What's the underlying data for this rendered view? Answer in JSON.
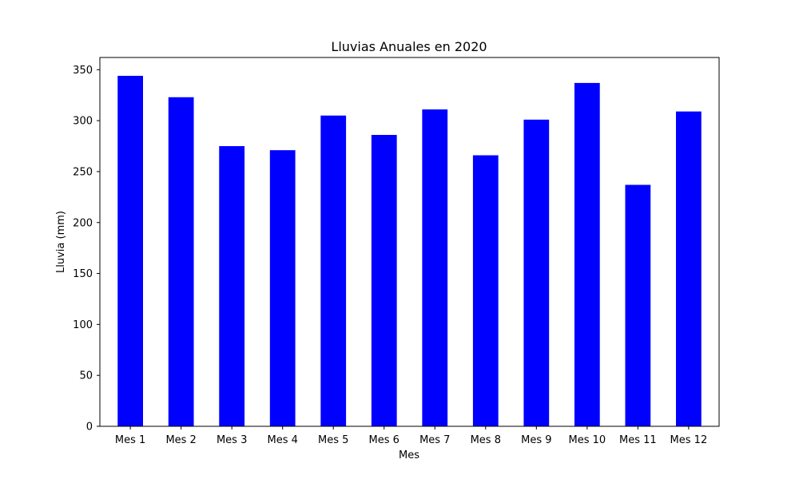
{
  "chart_data": {
    "type": "bar",
    "title": "Lluvias Anuales en 2020",
    "xlabel": "Mes",
    "ylabel": "Lluvia (mm)",
    "categories": [
      "Mes 1",
      "Mes 2",
      "Mes 3",
      "Mes 4",
      "Mes 5",
      "Mes 6",
      "Mes 7",
      "Mes 8",
      "Mes 9",
      "Mes 10",
      "Mes 11",
      "Mes 12"
    ],
    "values": [
      344,
      323,
      275,
      271,
      305,
      286,
      311,
      266,
      301,
      337,
      237,
      309
    ],
    "ylim": [
      0,
      362
    ],
    "yticks": [
      0,
      50,
      100,
      150,
      200,
      250,
      300,
      350
    ],
    "bar_color": "#0000ff",
    "grid": false,
    "legend": "none"
  }
}
